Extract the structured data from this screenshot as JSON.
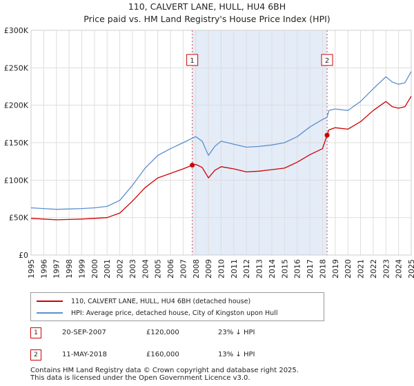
{
  "title_line1": "110, CALVERT LANE, HULL, HU4 6BH",
  "title_line2": "Price paid vs. HM Land Registry's House Price Index (HPI)",
  "chart_data": {
    "type": "line",
    "x_ticks": [
      "1995",
      "1996",
      "1997",
      "1998",
      "1999",
      "2000",
      "2001",
      "2002",
      "2003",
      "2004",
      "2005",
      "2006",
      "2007",
      "2008",
      "2009",
      "2010",
      "2011",
      "2012",
      "2013",
      "2014",
      "2015",
      "2016",
      "2017",
      "2018",
      "2019",
      "2020",
      "2021",
      "2022",
      "2023",
      "2024",
      "2025"
    ],
    "y_ticks": [
      "£0",
      "£50K",
      "£100K",
      "£150K",
      "£200K",
      "£250K",
      "£300K"
    ],
    "xlim": [
      1995,
      2025
    ],
    "ylim": [
      0,
      300000
    ],
    "grid": true,
    "series": [
      {
        "name": "110, CALVERT LANE, HULL, HU4 6BH (detached house)",
        "color": "#cc0000",
        "x": [
          1995,
          1996,
          1997,
          1998,
          1999,
          2000,
          2001,
          2002,
          2003,
          2004,
          2005,
          2006,
          2007,
          2007.72,
          2008,
          2008.5,
          2009,
          2009.5,
          2010,
          2011,
          2012,
          2013,
          2014,
          2015,
          2016,
          2017,
          2018.0,
          2018.36,
          2018.5,
          2019,
          2020,
          2021,
          2022,
          2023,
          2023.5,
          2024,
          2024.5,
          2025
        ],
        "values": [
          49000,
          48000,
          47000,
          47500,
          48000,
          49000,
          50000,
          56000,
          72000,
          90000,
          103000,
          109000,
          115000,
          120000,
          121000,
          117000,
          103000,
          113000,
          118000,
          115000,
          111000,
          112000,
          114000,
          116000,
          124000,
          134000,
          142000,
          160000,
          167000,
          170000,
          168000,
          178000,
          193000,
          205000,
          198000,
          196000,
          198000,
          212000
        ]
      },
      {
        "name": "HPI: Average price, detached house, City of Kingston upon Hull",
        "color": "#5b8fcc",
        "x": [
          1995,
          1996,
          1997,
          1998,
          1999,
          2000,
          2001,
          2002,
          2003,
          2004,
          2005,
          2006,
          2007,
          2007.72,
          2008,
          2008.5,
          2009,
          2009.5,
          2010,
          2011,
          2012,
          2013,
          2014,
          2015,
          2016,
          2017,
          2018.0,
          2018.36,
          2018.5,
          2019,
          2020,
          2021,
          2022,
          2023,
          2023.5,
          2024,
          2024.5,
          2025
        ],
        "values": [
          63000,
          62000,
          61000,
          61500,
          62000,
          63000,
          65000,
          73000,
          93000,
          116000,
          133000,
          142000,
          150000,
          156000,
          158000,
          152000,
          133000,
          145000,
          152000,
          148000,
          144000,
          145000,
          147000,
          150000,
          158000,
          171000,
          181000,
          184000,
          193000,
          195000,
          193000,
          205000,
          222000,
          238000,
          231000,
          228000,
          230000,
          245000
        ]
      }
    ],
    "annotations": [
      {
        "label": "1",
        "x": 2007.72
      },
      {
        "label": "2",
        "x": 2018.36
      }
    ],
    "sales": [
      {
        "x": 2007.72,
        "value": 120000
      },
      {
        "x": 2018.36,
        "value": 160000
      }
    ],
    "shade_between": [
      2007.72,
      2018.36
    ]
  },
  "legend": [
    {
      "label": "110, CALVERT LANE, HULL, HU4 6BH (detached house)",
      "color": "#cc0000"
    },
    {
      "label": "HPI: Average price, detached house, City of Kingston upon Hull",
      "color": "#5b8fcc"
    }
  ],
  "transactions": [
    {
      "num": "1",
      "date": "20-SEP-2007",
      "price": "£120,000",
      "hpi": "23% ↓ HPI"
    },
    {
      "num": "2",
      "date": "11-MAY-2018",
      "price": "£160,000",
      "hpi": "13% ↓ HPI"
    }
  ],
  "footer_line1": "Contains HM Land Registry data © Crown copyright and database right 2025.",
  "footer_line2": "This data is licensed under the Open Government Licence v3.0."
}
